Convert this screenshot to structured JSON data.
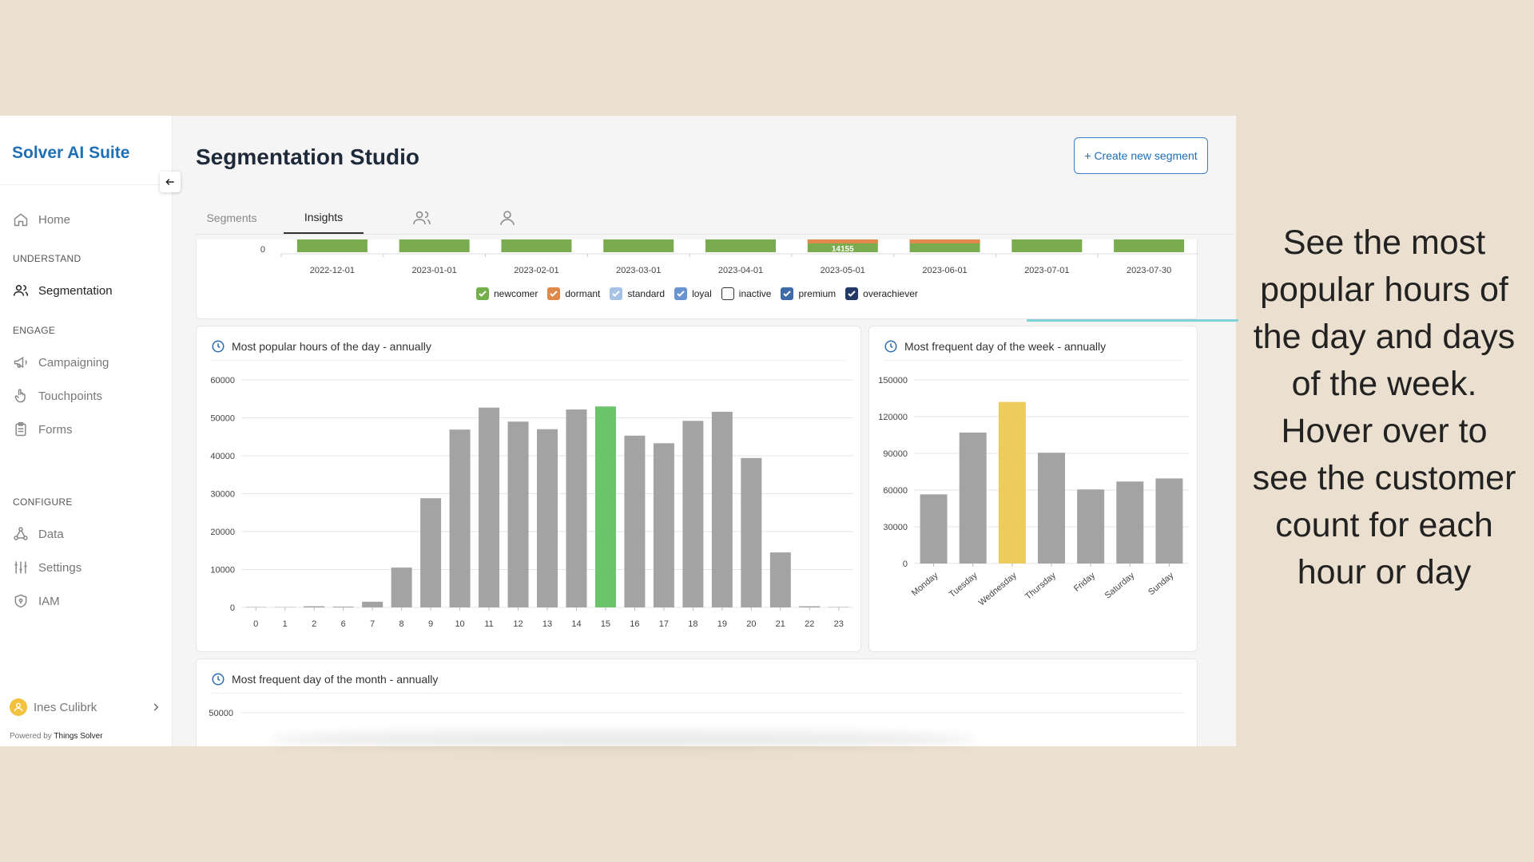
{
  "sidebar": {
    "brand": "Solver AI Suite",
    "home": "Home",
    "section_understand": "UNDERSTAND",
    "segmentation": "Segmentation",
    "section_engage": "ENGAGE",
    "campaigning": "Campaigning",
    "touchpoints": "Touchpoints",
    "forms": "Forms",
    "section_configure": "CONFIGURE",
    "data": "Data",
    "settings": "Settings",
    "iam": "IAM",
    "user_name": "Ines Culibrk",
    "powered_prefix": "Powered by",
    "powered_brand": "Things Solver"
  },
  "header": {
    "title": "Segmentation Studio",
    "create_button": "+ Create new segment"
  },
  "tabs": [
    "Segments",
    "Insights"
  ],
  "colors": {
    "brand": "#1f6fb5",
    "bar_gray": "#a3a3a3",
    "bar_highlight_green": "#6cc46a",
    "bar_highlight_yellow": "#edcb5c",
    "newcomer": "#7aac4f",
    "dormant": "#df8a4c"
  },
  "top_chart": {
    "y_tick": "0",
    "annotation": "14155",
    "legend": [
      {
        "label": "newcomer",
        "checked": true,
        "color": "#73b04b"
      },
      {
        "label": "dormant",
        "checked": true,
        "color": "#e0884a"
      },
      {
        "label": "standard",
        "checked": true,
        "color": "#a6c3e6"
      },
      {
        "label": "loyal",
        "checked": true,
        "color": "#6a94cf"
      },
      {
        "label": "inactive",
        "checked": false,
        "color": "#ffffff"
      },
      {
        "label": "premium",
        "checked": true,
        "color": "#3e6aa8"
      },
      {
        "label": "overachiever",
        "checked": true,
        "color": "#233a66"
      }
    ]
  },
  "chart_data": [
    {
      "type": "bar",
      "title": "",
      "categories": [
        "2022-12-01",
        "2023-01-01",
        "2023-02-01",
        "2023-03-01",
        "2023-04-01",
        "2023-05-01",
        "2023-06-01",
        "2023-07-01",
        "2023-07-30"
      ],
      "note": "partially scrolled stacked bar chart; only bar bases visible",
      "data_labels": [
        {
          "category": "2023-05-01",
          "value": 14155
        }
      ],
      "legend": [
        "newcomer",
        "dormant",
        "standard",
        "loyal",
        "inactive",
        "premium",
        "overachiever"
      ]
    },
    {
      "type": "bar",
      "title": "Most popular hours of the day - annually",
      "categories": [
        "0",
        "1",
        "2",
        "6",
        "7",
        "8",
        "9",
        "10",
        "11",
        "12",
        "13",
        "14",
        "15",
        "16",
        "17",
        "18",
        "19",
        "20",
        "21",
        "22",
        "23"
      ],
      "values": [
        100,
        80,
        300,
        200,
        1500,
        10500,
        28800,
        46900,
        52700,
        49000,
        47000,
        52200,
        53000,
        45300,
        43300,
        49200,
        51600,
        39400,
        14500,
        300,
        100
      ],
      "highlight": "15",
      "yticks": [
        "0",
        "10000",
        "20000",
        "30000",
        "40000",
        "50000",
        "60000"
      ],
      "ylim": [
        0,
        60000
      ]
    },
    {
      "type": "bar",
      "title": "Most frequent day of the week - annually",
      "categories": [
        "Monday",
        "Tuesday",
        "Wednesday",
        "Thursday",
        "Friday",
        "Saturday",
        "Sunday"
      ],
      "values": [
        56500,
        107000,
        132000,
        90500,
        60500,
        67000,
        69500
      ],
      "highlight": "Wednesday",
      "yticks": [
        "0",
        "30000",
        "60000",
        "90000",
        "120000",
        "150000"
      ],
      "ylim": [
        0,
        150000
      ]
    },
    {
      "type": "bar",
      "title": "Most frequent day of the month - annually",
      "yticks": [
        "50000"
      ],
      "note": "cut off; only top tick visible"
    }
  ],
  "annotation_text": "See the most popular hours of the day and days of the week. Hover over to see the customer count for each hour or day"
}
